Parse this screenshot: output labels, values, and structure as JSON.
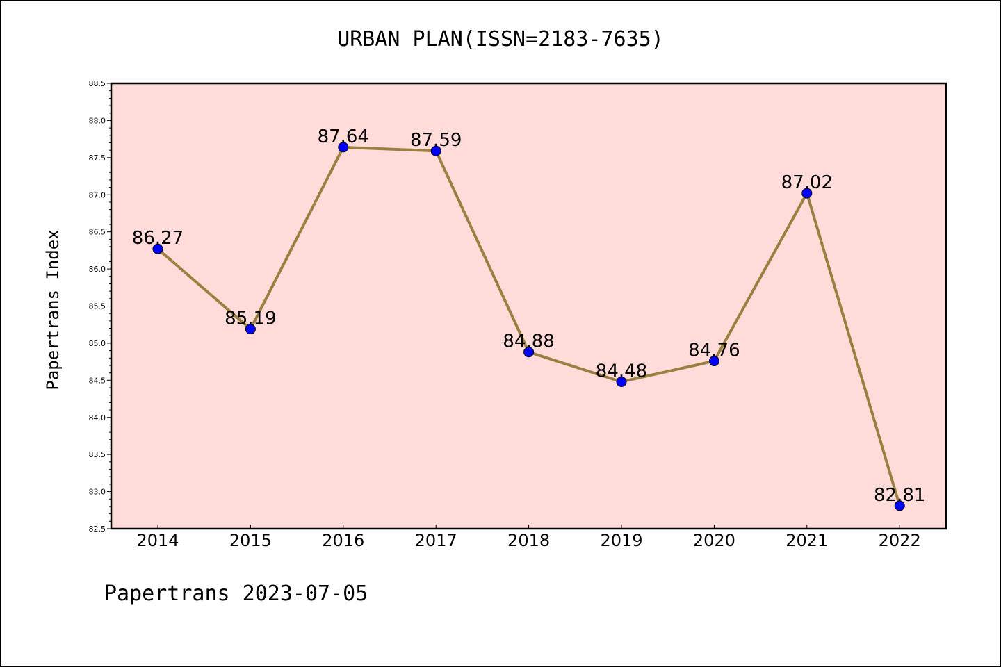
{
  "chart_data": {
    "type": "line",
    "title": "URBAN PLAN(ISSN=2183-7635)",
    "xlabel": "",
    "ylabel": "Papertrans Index",
    "categories": [
      "2014",
      "2015",
      "2016",
      "2017",
      "2018",
      "2019",
      "2020",
      "2021",
      "2022"
    ],
    "values": [
      86.27,
      85.19,
      87.64,
      87.59,
      84.88,
      84.48,
      84.76,
      87.02,
      82.81
    ],
    "data_labels": [
      "86.27",
      "85.19",
      "87.64",
      "87.59",
      "84.88",
      "84.48",
      "84.76",
      "87.02",
      "82.81"
    ],
    "ylim": [
      82.5,
      88.5
    ],
    "yticks": [
      "82.5",
      "83.0",
      "83.5",
      "84.0",
      "84.5",
      "85.0",
      "85.5",
      "86.0",
      "86.5",
      "87.0",
      "87.5",
      "88.0",
      "88.5"
    ],
    "grid": false,
    "legend": "none",
    "colors": {
      "plot_background": "#ffdcd9",
      "line": "#9a8040",
      "marker": "#0000ff"
    }
  },
  "footer": {
    "text": "Papertrans 2023-07-05"
  }
}
